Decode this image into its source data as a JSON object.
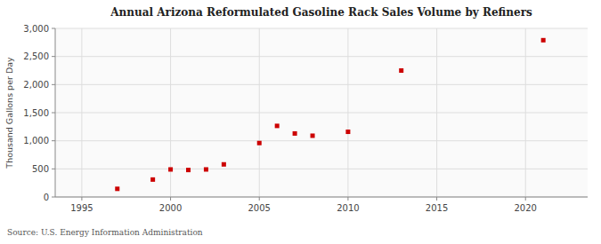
{
  "chart_data": {
    "type": "scatter",
    "title": "Annual Arizona Reformulated Gasoline Rack Sales Volume by Refiners",
    "ylabel": "Thousand Gallons per Day",
    "source": "Source: U.S. Energy Information Administration",
    "color": "#cc0000",
    "marker": "square",
    "grid": true,
    "xlim": [
      1993.5,
      2023.5
    ],
    "ylim": [
      0,
      3000
    ],
    "xticks": [
      1995,
      2000,
      2005,
      2010,
      2015,
      2020
    ],
    "yticks": [
      0,
      500,
      {
        "value": 1000,
        "label": "1,000"
      },
      {
        "value": 1500,
        "label": "1,500"
      },
      {
        "value": 2000,
        "label": "2,000"
      },
      {
        "value": 2500,
        "label": "2,500"
      },
      {
        "value": 3000,
        "label": "3,000"
      }
    ],
    "x": [
      1997,
      1999,
      2000,
      2001,
      2002,
      2003,
      2005,
      2006,
      2007,
      2008,
      2010,
      2013,
      2021
    ],
    "values": [
      145,
      310,
      490,
      480,
      490,
      580,
      960,
      1265,
      1130,
      1090,
      1160,
      2250,
      2790
    ]
  }
}
